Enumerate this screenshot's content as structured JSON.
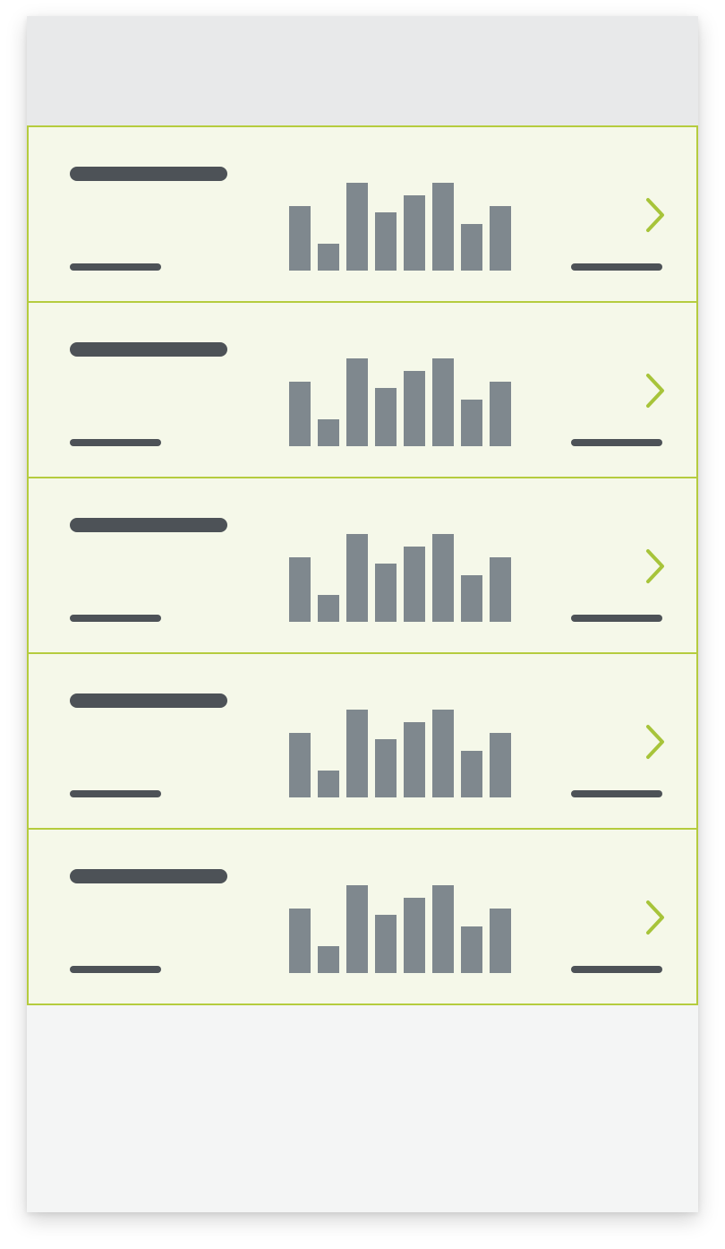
{
  "colors": {
    "header_bg": "#e8e9ea",
    "row_bg": "#f5f8e9",
    "row_border": "#b5cc3e",
    "placeholder_dark": "#4d5257",
    "bar_gray": "#7f888e",
    "chevron_green": "#a7c43a",
    "page_bg": "#f4f5f5"
  },
  "list": {
    "rows": [
      {
        "chart_values": [
          72,
          30,
          98,
          65,
          84,
          98,
          52,
          72
        ],
        "chevron_icon": "chevron-right-icon"
      },
      {
        "chart_values": [
          72,
          30,
          98,
          65,
          84,
          98,
          52,
          72
        ],
        "chevron_icon": "chevron-right-icon"
      },
      {
        "chart_values": [
          72,
          30,
          98,
          65,
          84,
          98,
          52,
          72
        ],
        "chevron_icon": "chevron-right-icon"
      },
      {
        "chart_values": [
          72,
          30,
          98,
          65,
          84,
          98,
          52,
          72
        ],
        "chevron_icon": "chevron-right-icon"
      },
      {
        "chart_values": [
          72,
          30,
          98,
          65,
          84,
          98,
          52,
          72
        ],
        "chevron_icon": "chevron-right-icon"
      }
    ]
  }
}
